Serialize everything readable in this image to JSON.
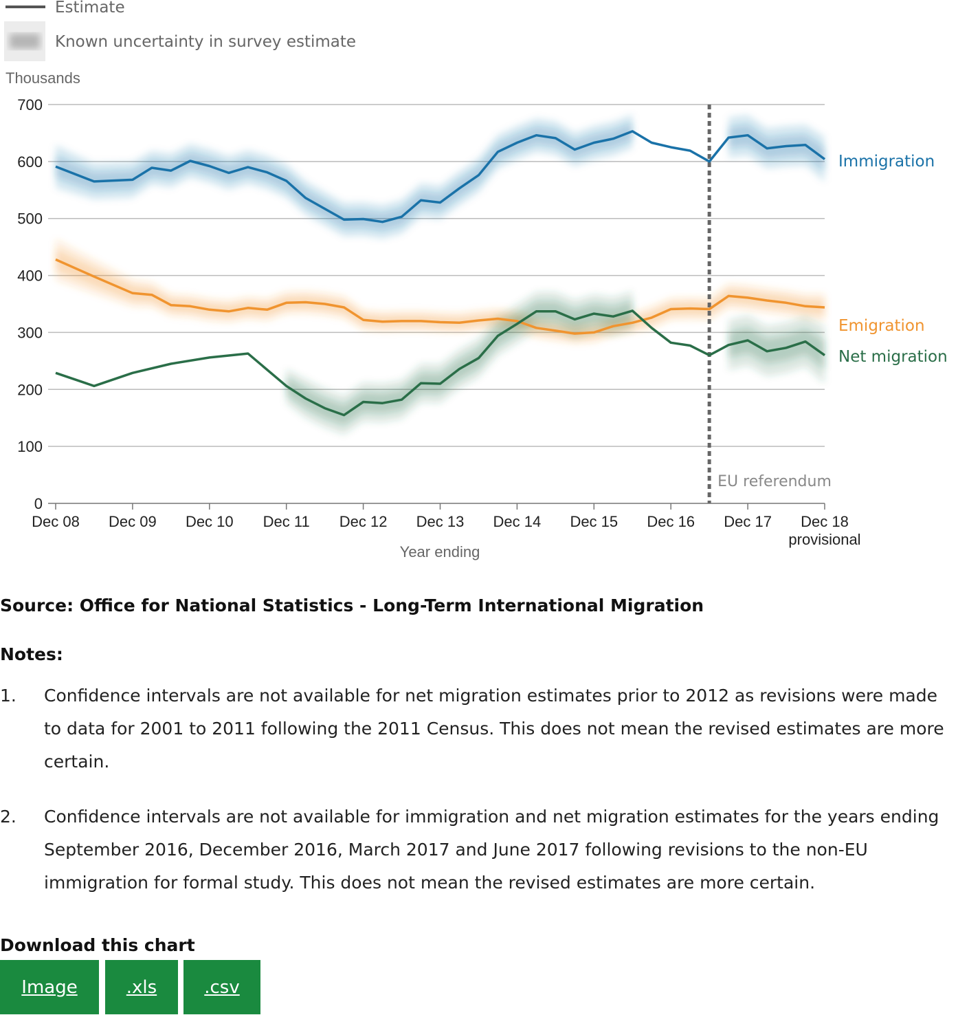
{
  "legend": {
    "estimate_label": "Estimate",
    "uncertainty_label": "Known uncertainty in survey estimate"
  },
  "chart_data": {
    "type": "line",
    "unit_label": "Thousands",
    "xlabel": "Year ending",
    "ylim": [
      0,
      700
    ],
    "yticks": [
      0,
      100,
      200,
      300,
      400,
      500,
      600,
      700
    ],
    "xticks": [
      {
        "x": 2008.0,
        "label": "Dec 08"
      },
      {
        "x": 2009.0,
        "label": "Dec 09"
      },
      {
        "x": 2010.0,
        "label": "Dec 10"
      },
      {
        "x": 2011.0,
        "label": "Dec 11"
      },
      {
        "x": 2012.0,
        "label": "Dec 12"
      },
      {
        "x": 2013.0,
        "label": "Dec 13"
      },
      {
        "x": 2014.0,
        "label": "Dec 14"
      },
      {
        "x": 2015.0,
        "label": "Dec 15"
      },
      {
        "x": 2016.0,
        "label": "Dec 16"
      },
      {
        "x": 2017.0,
        "label": "Dec 17"
      },
      {
        "x": 2018.0,
        "label": "Dec 18",
        "sublabel": "provisional"
      }
    ],
    "grid": "horizontal",
    "annotation": {
      "x": 2016.5,
      "label": "EU referendum"
    },
    "colors": {
      "Immigration": "#1a72a8",
      "Emigration": "#f0942f",
      "Net migration": "#2a6e48"
    },
    "series": [
      {
        "name": "Immigration",
        "x": [
          2008.0,
          2008.5,
          2009.0,
          2009.25,
          2009.5,
          2009.75,
          2010.0,
          2010.25,
          2010.5,
          2010.75,
          2011.0,
          2011.25,
          2011.5,
          2011.75,
          2012.0,
          2012.25,
          2012.5,
          2012.75,
          2013.0,
          2013.25,
          2013.5,
          2013.75,
          2014.0,
          2014.25,
          2014.5,
          2014.75,
          2015.0,
          2015.25,
          2015.5,
          2015.75,
          2016.0,
          2016.25,
          2016.5,
          2016.75,
          2017.0,
          2017.25,
          2017.5,
          2017.75,
          2018.0
        ],
        "values": [
          591,
          565,
          568,
          589,
          584,
          601,
          592,
          580,
          590,
          581,
          566,
          536,
          517,
          498,
          499,
          494,
          503,
          532,
          528,
          553,
          576,
          617,
          633,
          646,
          641,
          621,
          633,
          640,
          653,
          633,
          625,
          619,
          600,
          642,
          646,
          623,
          627,
          629,
          604
        ],
        "ci_x": [
          2008.0,
          2008.5,
          2009.0,
          2009.25,
          2009.5,
          2009.75,
          2010.0,
          2010.25,
          2010.5,
          2010.75,
          2011.0,
          2011.25,
          2011.5,
          2011.75,
          2012.0,
          2012.25,
          2012.5,
          2012.75,
          2013.0,
          2013.25,
          2013.5,
          2013.75,
          2014.0,
          2014.25,
          2014.5,
          2014.75,
          2015.0,
          2015.25,
          2015.5
        ],
        "ci_half": [
          38,
          32,
          32,
          30,
          30,
          30,
          30,
          30,
          30,
          30,
          30,
          30,
          30,
          30,
          30,
          30,
          30,
          30,
          30,
          30,
          30,
          30,
          30,
          30,
          30,
          30,
          30,
          30,
          30
        ],
        "ci2_x": [
          2016.75,
          2017.0,
          2017.25,
          2017.5,
          2017.75,
          2018.0
        ],
        "ci2_half": [
          36,
          36,
          36,
          36,
          36,
          40
        ]
      },
      {
        "name": "Emigration",
        "x": [
          2008.0,
          2008.5,
          2009.0,
          2009.25,
          2009.5,
          2009.75,
          2010.0,
          2010.25,
          2010.5,
          2010.75,
          2011.0,
          2011.25,
          2011.5,
          2011.75,
          2012.0,
          2012.25,
          2012.5,
          2012.75,
          2013.0,
          2013.25,
          2013.5,
          2013.75,
          2014.0,
          2014.25,
          2014.5,
          2014.75,
          2015.0,
          2015.25,
          2015.5,
          2015.75,
          2016.0,
          2016.25,
          2016.5,
          2016.75,
          2017.0,
          2017.25,
          2017.5,
          2017.75,
          2018.0
        ],
        "values": [
          428,
          398,
          369,
          366,
          348,
          346,
          340,
          337,
          343,
          340,
          352,
          353,
          350,
          344,
          322,
          319,
          320,
          320,
          318,
          317,
          321,
          324,
          320,
          308,
          303,
          298,
          300,
          311,
          317,
          326,
          341,
          342,
          341,
          364,
          361,
          356,
          352,
          346,
          344
        ],
        "ci_x": [
          2008.0,
          2008.5,
          2009.0,
          2009.25,
          2009.5,
          2009.75,
          2010.0,
          2010.25,
          2010.5,
          2010.75,
          2011.0,
          2011.25,
          2011.5,
          2011.75,
          2012.0,
          2012.25,
          2012.5,
          2012.75,
          2013.0,
          2013.25,
          2013.5,
          2013.75,
          2014.0,
          2014.25,
          2014.5,
          2014.75,
          2015.0,
          2015.25,
          2015.5,
          2015.75,
          2016.0,
          2016.25,
          2016.5,
          2016.75,
          2017.0,
          2017.25,
          2017.5,
          2017.75,
          2018.0
        ],
        "ci_half": [
          36,
          30,
          24,
          22,
          20,
          20,
          20,
          20,
          20,
          20,
          20,
          20,
          20,
          20,
          18,
          18,
          18,
          18,
          18,
          18,
          18,
          18,
          18,
          18,
          18,
          18,
          18,
          18,
          18,
          20,
          20,
          20,
          20,
          22,
          22,
          22,
          22,
          22,
          24
        ]
      },
      {
        "name": "Net migration",
        "x": [
          2008.0,
          2008.5,
          2009.0,
          2009.5,
          2010.0,
          2010.5,
          2011.0,
          2011.25,
          2011.5,
          2011.75,
          2012.0,
          2012.25,
          2012.5,
          2012.75,
          2013.0,
          2013.25,
          2013.5,
          2013.75,
          2014.0,
          2014.25,
          2014.5,
          2014.75,
          2015.0,
          2015.25,
          2015.5,
          2015.75,
          2016.0,
          2016.25,
          2016.5,
          2016.75,
          2017.0,
          2017.25,
          2017.5,
          2017.75,
          2018.0
        ],
        "values": [
          229,
          206,
          229,
          245,
          256,
          263,
          206,
          184,
          167,
          155,
          178,
          176,
          182,
          211,
          210,
          236,
          255,
          294,
          315,
          337,
          337,
          323,
          333,
          328,
          338,
          308,
          282,
          277,
          260,
          278,
          286,
          267,
          273,
          284,
          260
        ],
        "ci_x": [
          2011.0,
          2011.25,
          2011.5,
          2011.75,
          2012.0,
          2012.25,
          2012.5,
          2012.75,
          2013.0,
          2013.25,
          2013.5,
          2013.75,
          2014.0,
          2014.25,
          2014.5,
          2014.75,
          2015.0,
          2015.25,
          2015.5
        ],
        "ci_half": [
          30,
          34,
          34,
          34,
          34,
          34,
          34,
          34,
          34,
          34,
          34,
          34,
          34,
          34,
          34,
          34,
          34,
          34,
          34
        ],
        "ci2_x": [
          2016.75,
          2017.0,
          2017.25,
          2017.5,
          2017.75,
          2018.0
        ],
        "ci2_half": [
          44,
          44,
          44,
          44,
          44,
          50
        ]
      }
    ]
  },
  "source": "Source: Office for National Statistics - Long-Term International Migration",
  "notes": {
    "title": "Notes:",
    "items": [
      {
        "num": "1.",
        "text": "Confidence intervals are not available for net migration estimates prior to 2012 as revisions were made to data for 2001 to 2011 following the 2011 Census. This does not mean the revised estimates are more certain."
      },
      {
        "num": "2.",
        "text": "Confidence intervals are not available for immigration and net migration estimates for the years ending September 2016, December 2016, March 2017 and June 2017 following revisions to the non-EU immigration for formal study. This does not mean the revised estimates are more certain."
      }
    ]
  },
  "download": {
    "title": "Download this chart",
    "buttons": [
      {
        "label": "Image"
      },
      {
        "label": ".xls"
      },
      {
        "label": ".csv"
      }
    ]
  }
}
